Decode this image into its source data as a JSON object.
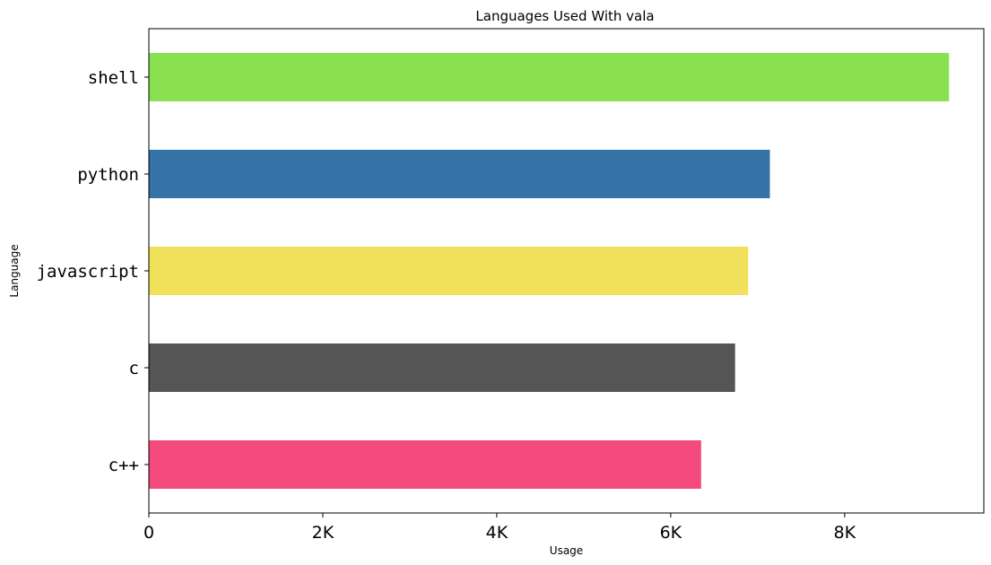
{
  "chart_data": {
    "type": "bar",
    "orientation": "horizontal",
    "title": "Languages Used With vala",
    "xlabel": "Usage",
    "ylabel": "Language",
    "categories": [
      "shell",
      "python",
      "javascript",
      "c",
      "c++"
    ],
    "values": [
      9200,
      7140,
      6890,
      6740,
      6350
    ],
    "colors": [
      "#89e051",
      "#3572a5",
      "#f1e05a",
      "#555555",
      "#f34b7d"
    ],
    "xlim": [
      0,
      9600
    ],
    "xticks": [
      0,
      2000,
      4000,
      6000,
      8000
    ],
    "xtick_labels": [
      "0",
      "2K",
      "4K",
      "6K",
      "8K"
    ],
    "grid": false,
    "legend": "none"
  }
}
